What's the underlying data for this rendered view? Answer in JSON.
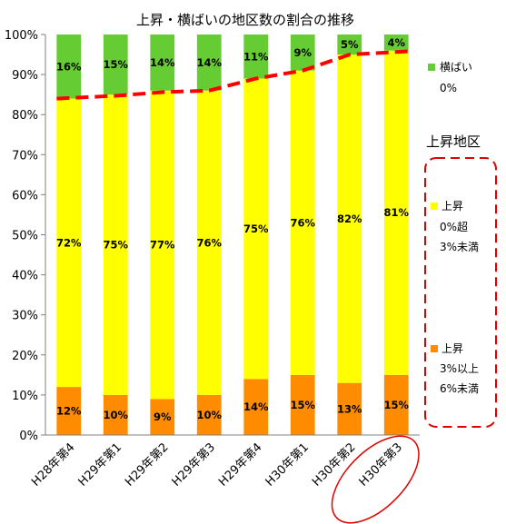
{
  "chart_data": {
    "type": "bar",
    "stacked": true,
    "title": "上昇・横ばいの地区数の割合の推移",
    "categories": [
      "H28年第4",
      "H29年第1",
      "H29年第2",
      "H29年第3",
      "H29年第4",
      "H30年第1",
      "H30年第2",
      "H30年第3"
    ],
    "highlighted_category": "H30年第3",
    "ylim": [
      0,
      100
    ],
    "y_ticks": [
      "0%",
      "10%",
      "20%",
      "30%",
      "40%",
      "50%",
      "60%",
      "70%",
      "80%",
      "90%",
      "100%"
    ],
    "grid": false,
    "series": [
      {
        "key": "s3_6",
        "color": "#ff8c00",
        "values": [
          12,
          10,
          9,
          10,
          14,
          15,
          13,
          15
        ],
        "labels": [
          "12%",
          "10%",
          "9%",
          "10%",
          "14%",
          "15%",
          "13%",
          "15%"
        ]
      },
      {
        "key": "s0_3",
        "color": "#ffff00",
        "values": [
          72,
          75,
          77,
          76,
          75,
          76,
          82,
          81
        ],
        "labels": [
          "72%",
          "75%",
          "77%",
          "76%",
          "75%",
          "76%",
          "82%",
          "81%"
        ]
      },
      {
        "key": "flat",
        "color": "#66cc33",
        "values": [
          16,
          15,
          14,
          14,
          11,
          9,
          5,
          4
        ],
        "labels": [
          "16%",
          "15%",
          "14%",
          "14%",
          "11%",
          "9%",
          "5%",
          "4%"
        ]
      }
    ],
    "trend_line": {
      "color": "#ff0000",
      "style": "dashed",
      "values": [
        84,
        84.7,
        85.6,
        86,
        89,
        91,
        95,
        95.8
      ]
    },
    "legend": {
      "placement": "right",
      "flat": {
        "line1": "横ばい",
        "line2": "0%"
      },
      "group_title": "上昇地区",
      "s0_3": {
        "line1": "上昇",
        "line2": "0%超",
        "line3": "3%未満"
      },
      "s3_6": {
        "line1": "上昇",
        "line2": "3%以上",
        "line3": "6%未満"
      }
    }
  }
}
